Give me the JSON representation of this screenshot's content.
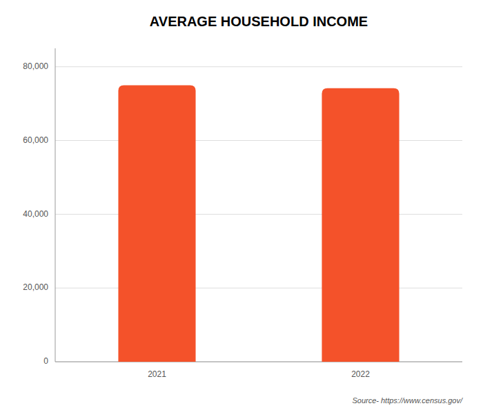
{
  "chart_data": {
    "type": "bar",
    "title": "AVERAGE HOUSEHOLD INCOME",
    "categories": [
      "2021",
      "2022"
    ],
    "values": [
      75000,
      74200
    ],
    "color": "#F4522A",
    "ylim": [
      0,
      85000
    ],
    "yticks": [
      0,
      {
        "value": 20000,
        "label": "20,000"
      },
      {
        "value": 40000,
        "label": "40,000"
      },
      {
        "value": 60000,
        "label": "60,000"
      },
      {
        "value": 80000,
        "label": "80,000"
      }
    ],
    "grid": true,
    "annotations": [
      "Source- https://www.census.gov/"
    ]
  }
}
